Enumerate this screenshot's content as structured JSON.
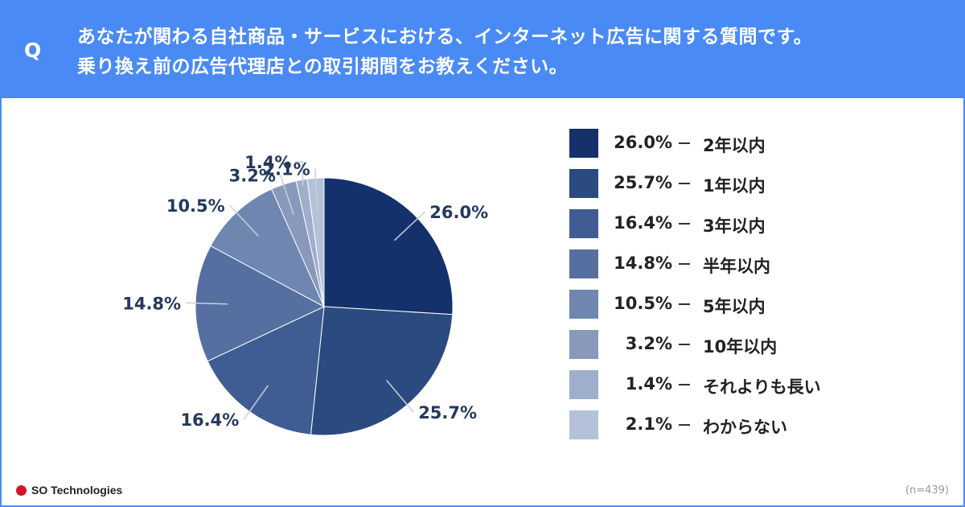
{
  "question": {
    "mark": "Q",
    "line1": "あなたが関わる自社商品・サービスにおける、インターネット広告に関する質問です。",
    "line2": "乗り換え前の広告代理店との取引期間をお教えください。"
  },
  "chart_data": {
    "type": "pie",
    "categories": [
      "2年以内",
      "1年以内",
      "3年以内",
      "半年以内",
      "5年以内",
      "10年以内",
      "それよりも長い",
      "わからない"
    ],
    "values": [
      26.0,
      25.7,
      16.4,
      14.8,
      10.5,
      3.2,
      1.4,
      2.1
    ],
    "labels": [
      "26.0%",
      "25.7%",
      "16.4%",
      "14.8%",
      "10.5%",
      "3.2%",
      "1.4%",
      "2.1%"
    ],
    "colors": [
      "#14316b",
      "#2a4a80",
      "#3f5d92",
      "#5570a0",
      "#6e86b0",
      "#8899bb",
      "#9eaecb",
      "#b3c2d8"
    ],
    "legend_position": "right"
  },
  "footer": {
    "brand": "SO Technologies",
    "sample": "(n=439)"
  }
}
